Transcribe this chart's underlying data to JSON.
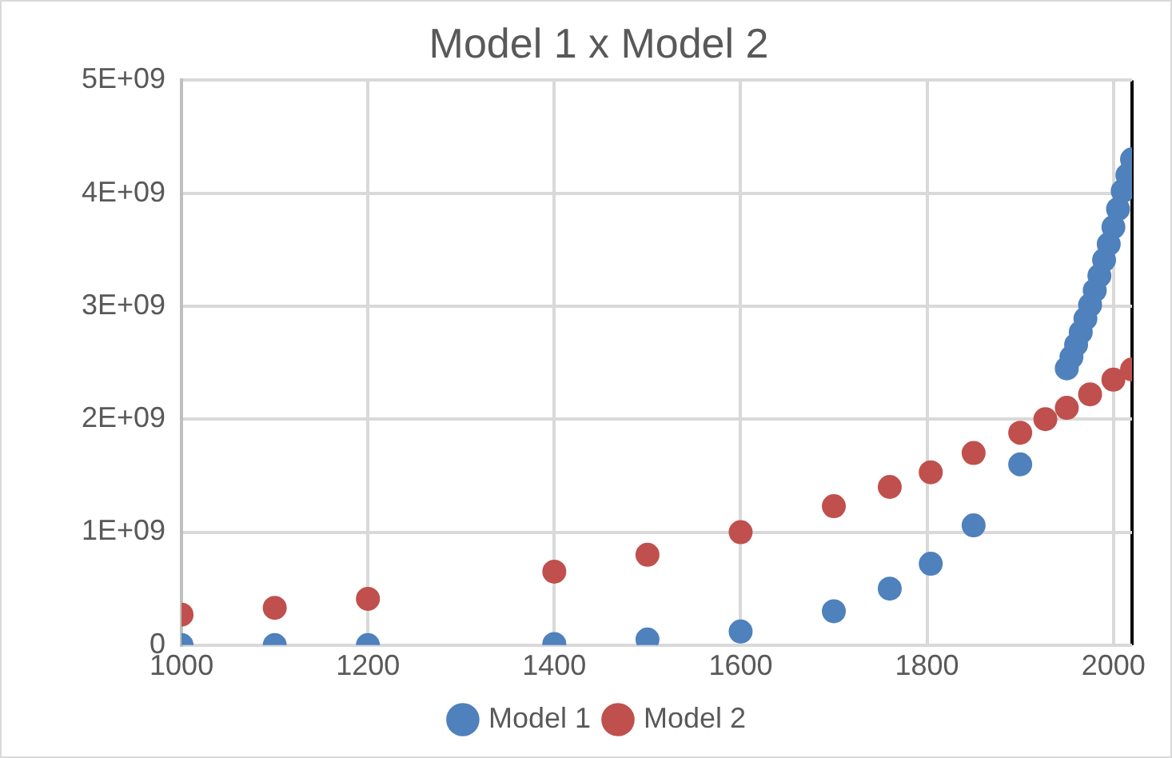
{
  "chart_data": {
    "type": "scatter",
    "title": "Model 1 x Model 2",
    "xlim": [
      1000,
      2020
    ],
    "xticks": [
      1000,
      1200,
      1400,
      1600,
      1800,
      2000,
      {
        "value": 2020,
        "label": null
      }
    ],
    "ylim": [
      0,
      5000000000
    ],
    "yticks": [
      {
        "value": 0,
        "label": "0"
      },
      {
        "value": 1000000000,
        "label": "1E+09"
      },
      {
        "value": 2000000000,
        "label": "2E+09"
      },
      {
        "value": 3000000000,
        "label": "3E+09"
      },
      {
        "value": 4000000000,
        "label": "4E+09"
      },
      {
        "value": 5000000000,
        "label": "5E+09"
      }
    ],
    "grid": true,
    "legend": "bottom",
    "marker": "circle",
    "series": [
      {
        "name": "Model 1",
        "color": "#4f81bd",
        "x": [
          1000,
          1100,
          1200,
          1400,
          1500,
          1600,
          1700,
          1760,
          1804,
          1850,
          1900,
          1950,
          1955,
          1960,
          1965,
          1970,
          1975,
          1980,
          1985,
          1990,
          1995,
          2000,
          2005,
          2010,
          2015,
          2020
        ],
        "values": [
          0,
          0,
          0,
          10000000,
          50000000,
          120000000,
          300000000,
          500000000,
          720000000,
          1060000000,
          1600000000,
          2450000000,
          2550000000,
          2660000000,
          2770000000,
          2890000000,
          3010000000,
          3140000000,
          3270000000,
          3410000000,
          3550000000,
          3700000000,
          3860000000,
          4020000000,
          4160000000,
          4300000000
        ]
      },
      {
        "name": "Model 2",
        "color": "#c0504d",
        "x": [
          1000,
          1100,
          1200,
          1400,
          1500,
          1600,
          1700,
          1760,
          1804,
          1850,
          1900,
          1927,
          1950,
          1975,
          2000,
          2020
        ],
        "values": [
          270000000,
          330000000,
          410000000,
          650000000,
          800000000,
          1000000000,
          1230000000,
          1400000000,
          1530000000,
          1700000000,
          1880000000,
          2000000000,
          2100000000,
          2220000000,
          2350000000,
          2440000000
        ]
      }
    ]
  }
}
